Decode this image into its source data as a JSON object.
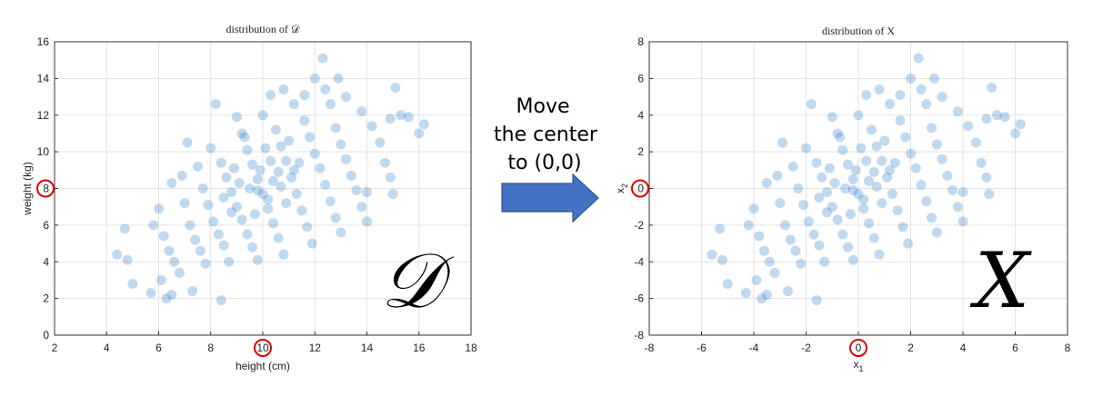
{
  "chart_data": [
    {
      "type": "scatter",
      "title": "distribution of 𝒟",
      "xlabel": "height (cm)",
      "ylabel": "weight (kg)",
      "xlim": [
        2,
        18
      ],
      "ylim": [
        0,
        16
      ],
      "xticks": [
        2,
        4,
        6,
        8,
        10,
        12,
        14,
        16,
        18
      ],
      "yticks": [
        0,
        2,
        4,
        6,
        8,
        10,
        12,
        14,
        16
      ],
      "grid": true,
      "marker_color": "#1f77c4",
      "center": [
        10,
        8
      ],
      "highlighted_ticks": {
        "x": "10",
        "y": "8"
      },
      "corner_symbol": "𝒟",
      "points": [
        [
          4.4,
          4.4
        ],
        [
          4.8,
          4.1
        ],
        [
          5.0,
          2.8
        ],
        [
          4.7,
          5.8
        ],
        [
          5.7,
          2.3
        ],
        [
          6.1,
          3.0
        ],
        [
          6.3,
          2.0
        ],
        [
          6.5,
          2.2
        ],
        [
          7.3,
          2.4
        ],
        [
          8.4,
          1.9
        ],
        [
          5.8,
          6.0
        ],
        [
          6.0,
          6.9
        ],
        [
          6.2,
          5.4
        ],
        [
          6.4,
          4.6
        ],
        [
          6.6,
          4.0
        ],
        [
          6.8,
          3.4
        ],
        [
          7.0,
          7.2
        ],
        [
          7.2,
          6.0
        ],
        [
          7.4,
          5.2
        ],
        [
          7.6,
          4.6
        ],
        [
          7.8,
          3.9
        ],
        [
          6.5,
          8.3
        ],
        [
          6.9,
          8.7
        ],
        [
          7.1,
          10.5
        ],
        [
          7.5,
          9.2
        ],
        [
          7.7,
          8.0
        ],
        [
          7.9,
          7.1
        ],
        [
          8.1,
          6.2
        ],
        [
          8.3,
          5.5
        ],
        [
          8.5,
          4.9
        ],
        [
          8.7,
          4.0
        ],
        [
          8.2,
          12.6
        ],
        [
          8.0,
          10.2
        ],
        [
          8.4,
          9.4
        ],
        [
          8.6,
          8.6
        ],
        [
          8.8,
          7.8
        ],
        [
          9.0,
          7.0
        ],
        [
          9.2,
          6.3
        ],
        [
          9.4,
          5.5
        ],
        [
          9.6,
          4.8
        ],
        [
          9.8,
          4.1
        ],
        [
          9.0,
          11.9
        ],
        [
          9.2,
          11.0
        ],
        [
          9.4,
          10.1
        ],
        [
          9.6,
          9.3
        ],
        [
          9.8,
          8.5
        ],
        [
          10.0,
          7.7
        ],
        [
          10.2,
          6.9
        ],
        [
          10.4,
          6.1
        ],
        [
          10.6,
          5.3
        ],
        [
          10.8,
          4.4
        ],
        [
          10.3,
          13.1
        ],
        [
          10.0,
          12.0
        ],
        [
          10.5,
          11.2
        ],
        [
          10.7,
          10.3
        ],
        [
          10.9,
          9.5
        ],
        [
          11.1,
          8.6
        ],
        [
          11.3,
          7.7
        ],
        [
          11.5,
          6.8
        ],
        [
          11.7,
          5.9
        ],
        [
          11.9,
          5.0
        ],
        [
          10.8,
          13.4
        ],
        [
          11.2,
          12.6
        ],
        [
          11.6,
          11.7
        ],
        [
          11.8,
          10.8
        ],
        [
          12.0,
          9.9
        ],
        [
          12.2,
          9.1
        ],
        [
          12.4,
          8.2
        ],
        [
          12.6,
          7.3
        ],
        [
          12.8,
          6.4
        ],
        [
          13.0,
          5.6
        ],
        [
          12.3,
          15.1
        ],
        [
          12.4,
          13.4
        ],
        [
          12.6,
          12.6
        ],
        [
          12.8,
          11.3
        ],
        [
          13.0,
          10.4
        ],
        [
          13.2,
          9.6
        ],
        [
          13.4,
          8.7
        ],
        [
          13.6,
          7.9
        ],
        [
          13.8,
          7.0
        ],
        [
          14.0,
          6.2
        ],
        [
          13.2,
          13.0
        ],
        [
          13.8,
          12.2
        ],
        [
          14.2,
          11.4
        ],
        [
          14.5,
          10.5
        ],
        [
          14.7,
          9.4
        ],
        [
          14.9,
          8.6
        ],
        [
          15.1,
          13.5
        ],
        [
          14.9,
          11.8
        ],
        [
          16.0,
          11.0
        ],
        [
          16.2,
          11.5
        ],
        [
          15.0,
          7.7
        ],
        [
          14.0,
          7.8
        ],
        [
          15.6,
          11.9
        ],
        [
          15.3,
          12.0
        ],
        [
          12.9,
          14.0
        ],
        [
          11.6,
          13.1
        ],
        [
          12.0,
          14.0
        ],
        [
          9.3,
          10.8
        ],
        [
          10.1,
          10.2
        ],
        [
          9.9,
          9.0
        ],
        [
          10.4,
          8.4
        ],
        [
          10.9,
          7.2
        ],
        [
          8.9,
          9.1
        ],
        [
          9.5,
          8.0
        ],
        [
          10.2,
          7.4
        ],
        [
          9.1,
          8.3
        ],
        [
          10.6,
          8.9
        ],
        [
          11.4,
          9.4
        ],
        [
          8.5,
          7.5
        ],
        [
          9.7,
          6.6
        ],
        [
          11.0,
          10.6
        ],
        [
          10.3,
          9.5
        ],
        [
          9.8,
          7.9
        ],
        [
          10.7,
          8.1
        ],
        [
          8.8,
          6.7
        ],
        [
          11.2,
          9.0
        ]
      ]
    },
    {
      "type": "scatter",
      "title": "distribution of X",
      "xlabel": "x1",
      "ylabel": "x2",
      "xlim": [
        -8,
        8
      ],
      "ylim": [
        -8,
        8
      ],
      "xticks": [
        -8,
        -6,
        -4,
        -2,
        0,
        2,
        4,
        6,
        8
      ],
      "yticks": [
        -8,
        -6,
        -4,
        -2,
        0,
        2,
        4,
        6,
        8
      ],
      "grid": true,
      "marker_color": "#1f77c4",
      "center": [
        0,
        0
      ],
      "highlighted_ticks": {
        "x": "0",
        "y": "0"
      },
      "corner_symbol": "X",
      "points": [
        [
          -5.6,
          -3.6
        ],
        [
          -5.2,
          -3.9
        ],
        [
          -5.0,
          -5.2
        ],
        [
          -5.3,
          -2.2
        ],
        [
          -4.3,
          -5.7
        ],
        [
          -3.9,
          -5.0
        ],
        [
          -3.7,
          -6.0
        ],
        [
          -3.5,
          -5.8
        ],
        [
          -2.7,
          -5.6
        ],
        [
          -1.6,
          -6.1
        ],
        [
          -4.2,
          -2.0
        ],
        [
          -4.0,
          -1.1
        ],
        [
          -3.8,
          -2.6
        ],
        [
          -3.6,
          -3.4
        ],
        [
          -3.4,
          -4.0
        ],
        [
          -3.2,
          -4.6
        ],
        [
          -3.0,
          -0.8
        ],
        [
          -2.8,
          -2.0
        ],
        [
          -2.6,
          -2.8
        ],
        [
          -2.4,
          -3.4
        ],
        [
          -2.2,
          -4.1
        ],
        [
          -3.5,
          0.3
        ],
        [
          -3.1,
          0.7
        ],
        [
          -2.9,
          2.5
        ],
        [
          -2.5,
          1.2
        ],
        [
          -2.3,
          0.0
        ],
        [
          -2.1,
          -0.9
        ],
        [
          -1.9,
          -1.8
        ],
        [
          -1.7,
          -2.5
        ],
        [
          -1.5,
          -3.1
        ],
        [
          -1.3,
          -4.0
        ],
        [
          -1.8,
          4.6
        ],
        [
          -2.0,
          2.2
        ],
        [
          -1.6,
          1.4
        ],
        [
          -1.4,
          0.6
        ],
        [
          -1.2,
          -0.2
        ],
        [
          -1.0,
          -1.0
        ],
        [
          -0.8,
          -1.7
        ],
        [
          -0.6,
          -2.5
        ],
        [
          -0.4,
          -3.2
        ],
        [
          -0.2,
          -3.9
        ],
        [
          -1.0,
          3.9
        ],
        [
          -0.8,
          3.0
        ],
        [
          -0.6,
          2.1
        ],
        [
          -0.4,
          1.3
        ],
        [
          -0.2,
          0.5
        ],
        [
          0.0,
          -0.3
        ],
        [
          0.2,
          -1.1
        ],
        [
          0.4,
          -1.9
        ],
        [
          0.6,
          -2.7
        ],
        [
          0.8,
          -3.6
        ],
        [
          0.3,
          5.1
        ],
        [
          0.0,
          4.0
        ],
        [
          0.5,
          3.2
        ],
        [
          0.7,
          2.3
        ],
        [
          0.9,
          1.5
        ],
        [
          1.1,
          0.6
        ],
        [
          1.3,
          -0.3
        ],
        [
          1.5,
          -1.2
        ],
        [
          1.7,
          -2.1
        ],
        [
          1.9,
          -3.0
        ],
        [
          0.8,
          5.4
        ],
        [
          1.2,
          4.6
        ],
        [
          1.6,
          3.7
        ],
        [
          1.8,
          2.8
        ],
        [
          2.0,
          1.9
        ],
        [
          2.2,
          1.1
        ],
        [
          2.4,
          0.2
        ],
        [
          2.6,
          -0.7
        ],
        [
          2.8,
          -1.6
        ],
        [
          3.0,
          -2.4
        ],
        [
          2.3,
          7.1
        ],
        [
          2.4,
          5.4
        ],
        [
          2.6,
          4.6
        ],
        [
          2.8,
          3.3
        ],
        [
          3.0,
          2.4
        ],
        [
          3.2,
          1.6
        ],
        [
          3.4,
          0.7
        ],
        [
          3.6,
          -0.1
        ],
        [
          3.8,
          -1.0
        ],
        [
          4.0,
          -1.8
        ],
        [
          3.2,
          5.0
        ],
        [
          3.8,
          4.2
        ],
        [
          4.2,
          3.4
        ],
        [
          4.5,
          2.5
        ],
        [
          4.7,
          1.4
        ],
        [
          4.9,
          0.6
        ],
        [
          5.1,
          5.5
        ],
        [
          4.9,
          3.8
        ],
        [
          6.0,
          3.0
        ],
        [
          6.2,
          3.5
        ],
        [
          5.0,
          -0.3
        ],
        [
          4.0,
          -0.2
        ],
        [
          5.6,
          3.9
        ],
        [
          5.3,
          4.0
        ],
        [
          2.9,
          6.0
        ],
        [
          1.6,
          5.1
        ],
        [
          2.0,
          6.0
        ],
        [
          -0.7,
          2.8
        ],
        [
          0.1,
          2.2
        ],
        [
          -0.1,
          1.0
        ],
        [
          0.4,
          0.4
        ],
        [
          0.9,
          -0.8
        ],
        [
          -1.1,
          1.1
        ],
        [
          -0.5,
          0.0
        ],
        [
          0.2,
          -0.6
        ],
        [
          -0.9,
          0.3
        ],
        [
          0.6,
          0.9
        ],
        [
          1.4,
          1.4
        ],
        [
          -1.5,
          -0.5
        ],
        [
          -0.3,
          -1.4
        ],
        [
          1.0,
          2.6
        ],
        [
          0.3,
          1.5
        ],
        [
          -0.2,
          -0.1
        ],
        [
          0.7,
          0.1
        ],
        [
          -1.2,
          -1.3
        ],
        [
          1.2,
          1.0
        ]
      ]
    }
  ],
  "arrow": {
    "lines": [
      "Move",
      "the center",
      "to (0,0)"
    ],
    "color": "#4472c4",
    "edge_color": "#2f528f"
  },
  "highlight_color": "#e00000"
}
